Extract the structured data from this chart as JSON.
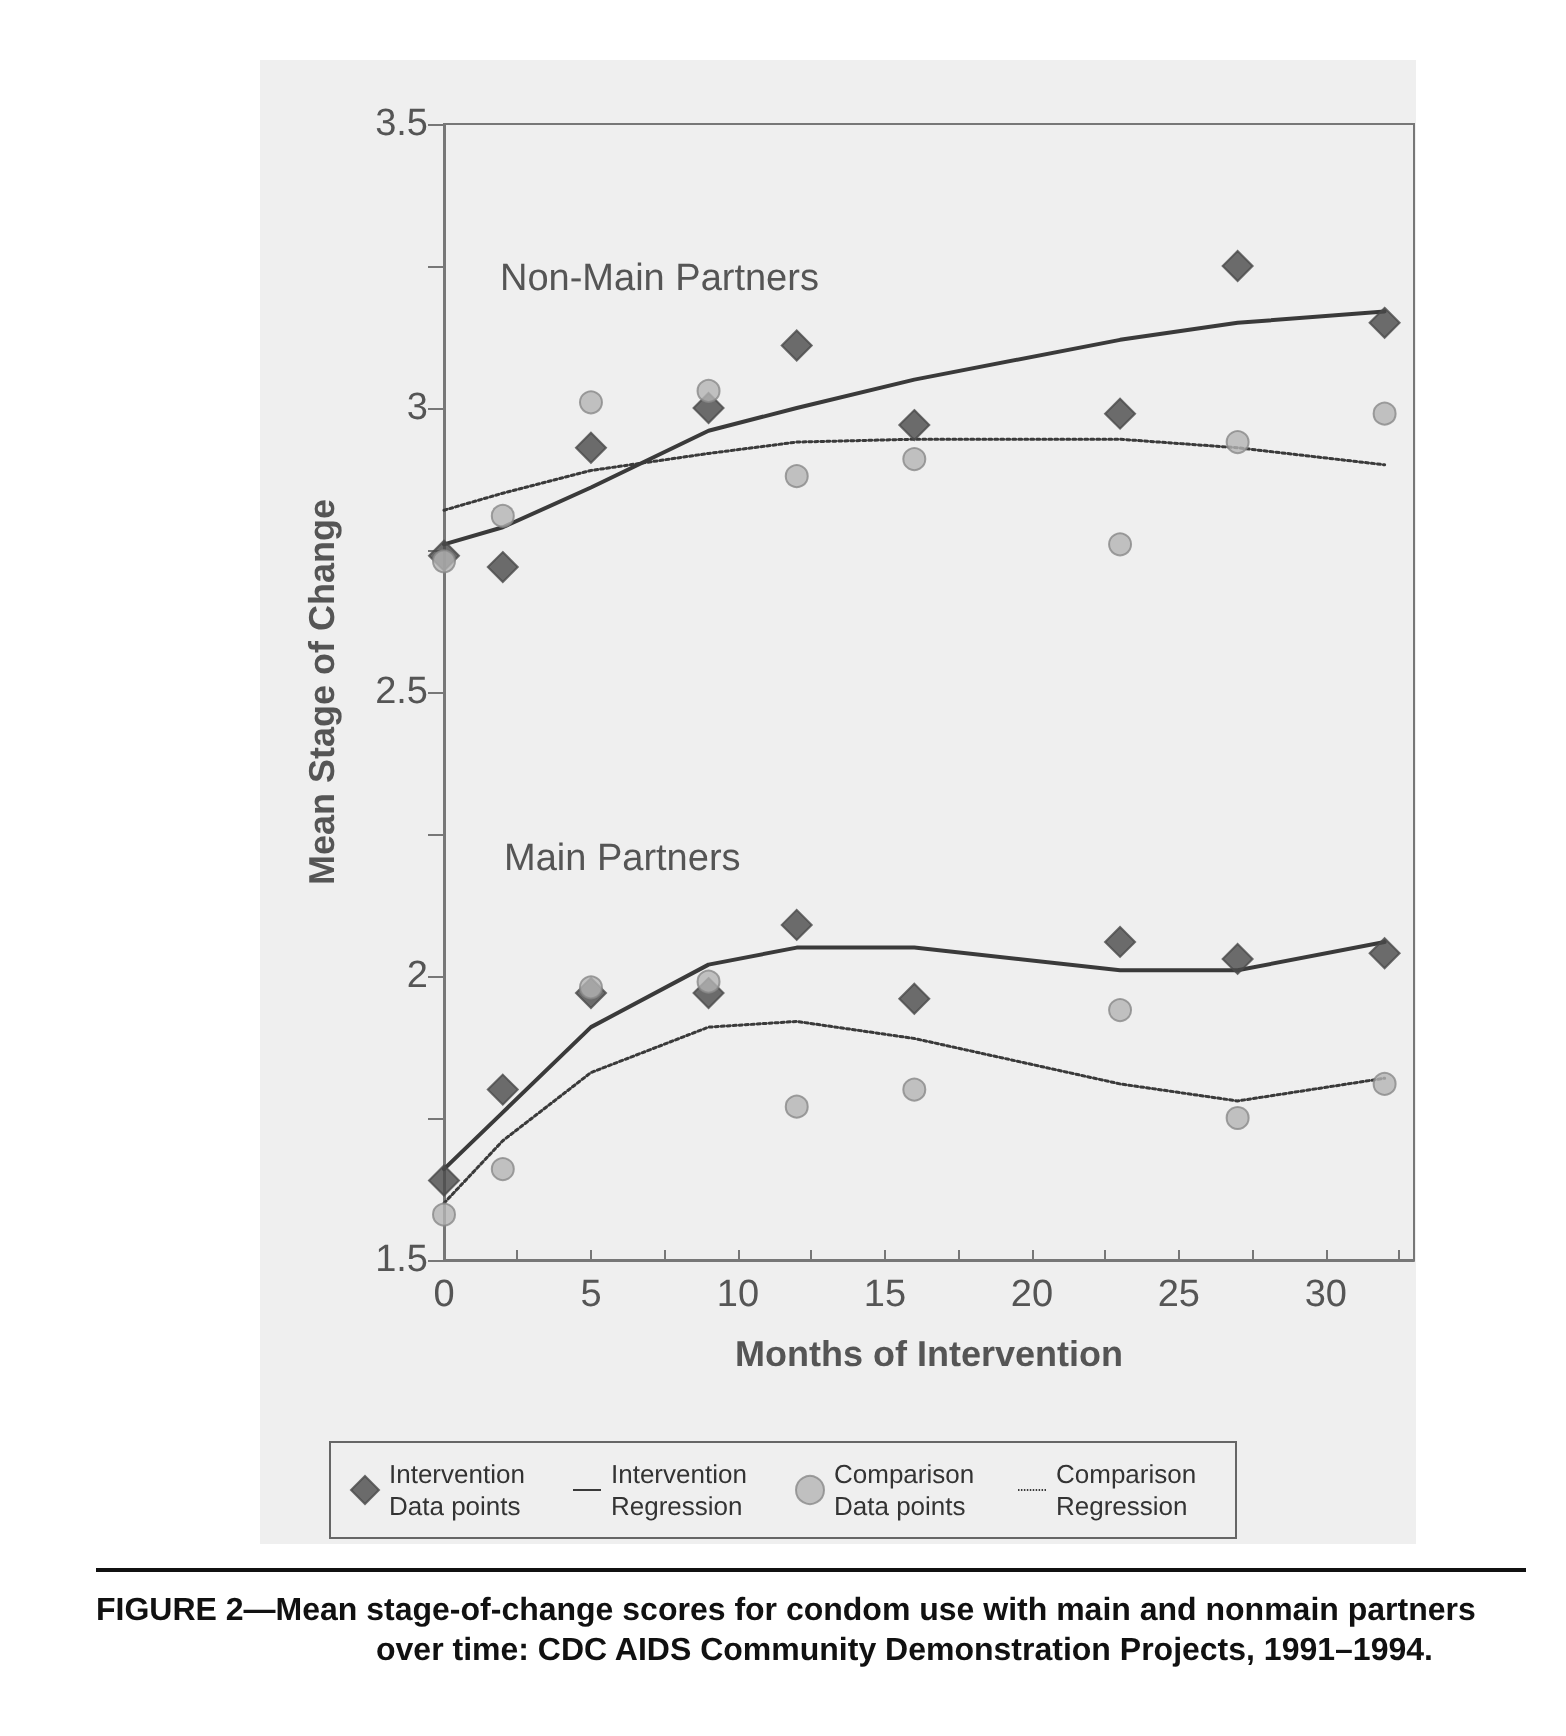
{
  "chart_data": {
    "type": "scatter",
    "xlabel": "Months of Intervention",
    "ylabel": "Mean Stage of Change",
    "x": [
      0,
      2,
      5,
      9,
      12,
      16,
      23,
      27,
      32
    ],
    "xlim": [
      0,
      33
    ],
    "xticks": [
      0,
      {
        "value": 2.5,
        "label": null
      },
      5,
      {
        "value": 7.5,
        "label": null
      },
      10,
      {
        "value": 12.5,
        "label": null
      },
      15,
      {
        "value": 17.5,
        "label": null
      },
      20,
      {
        "value": 22.5,
        "label": null
      },
      25,
      {
        "value": 27.5,
        "label": null
      },
      30,
      {
        "value": 32.5,
        "label": null
      }
    ],
    "ylim": [
      1.5,
      3.5
    ],
    "yticks": [
      1.5,
      {
        "value": 1.75,
        "label": null
      },
      2,
      {
        "value": 2.25,
        "label": null
      },
      2.5,
      {
        "value": 2.75,
        "label": null
      },
      3,
      {
        "value": 3.25,
        "label": null
      },
      3.5
    ],
    "grid": false,
    "legend": "bottom",
    "series": [
      {
        "name": "Intervention Data points",
        "type": "scatter",
        "marker": "diamond",
        "color": "#4a4a4a",
        "values": [
          2.74,
          2.72,
          2.93,
          3.0,
          3.11,
          2.97,
          2.99,
          3.25,
          3.15
        ]
      },
      {
        "name": "Intervention Regression",
        "type": "line",
        "marker": "none",
        "line_style": "solid",
        "color": "#3a3a3a",
        "values": [
          2.76,
          2.79,
          2.86,
          2.96,
          3.0,
          3.05,
          3.12,
          3.15,
          3.17
        ]
      },
      {
        "name": "Comparison Data points",
        "type": "scatter",
        "marker": "circle",
        "color": "#b4b4b4",
        "values": [
          2.73,
          2.81,
          3.01,
          3.03,
          2.88,
          2.91,
          2.76,
          2.94,
          2.99
        ]
      },
      {
        "name": "Comparison Regression",
        "type": "line",
        "marker": "none",
        "line_style": "dotted",
        "color": "#3a3a3a",
        "values": [
          2.82,
          2.85,
          2.89,
          2.92,
          2.94,
          2.945,
          2.945,
          2.93,
          2.9
        ]
      },
      {
        "type": "scatter",
        "marker": "diamond",
        "color": "#4a4a4a",
        "values": [
          1.64,
          1.8,
          1.97,
          1.97,
          2.09,
          1.96,
          2.06,
          2.03,
          2.04
        ]
      },
      {
        "type": "line",
        "marker": "none",
        "line_style": "solid",
        "color": "#3a3a3a",
        "values": [
          1.66,
          1.76,
          1.91,
          2.02,
          2.05,
          2.05,
          2.01,
          2.01,
          2.06
        ]
      },
      {
        "type": "scatter",
        "marker": "circle",
        "color": "#b4b4b4",
        "values": [
          1.58,
          1.66,
          1.98,
          1.99,
          1.77,
          1.8,
          1.94,
          1.75,
          1.81
        ]
      },
      {
        "type": "line",
        "marker": "none",
        "line_style": "dotted",
        "color": "#3a3a3a",
        "values": [
          1.6,
          1.71,
          1.83,
          1.91,
          1.92,
          1.89,
          1.81,
          1.78,
          1.82
        ]
      }
    ],
    "annotations": [
      "Non-Main Partners",
      "Main Partners",
      "FIGURE 2—Mean stage-of-change scores for condom use with main and nonmain partners over time: CDC AIDS Community Demonstration Projects, 1991–1994."
    ]
  }
}
